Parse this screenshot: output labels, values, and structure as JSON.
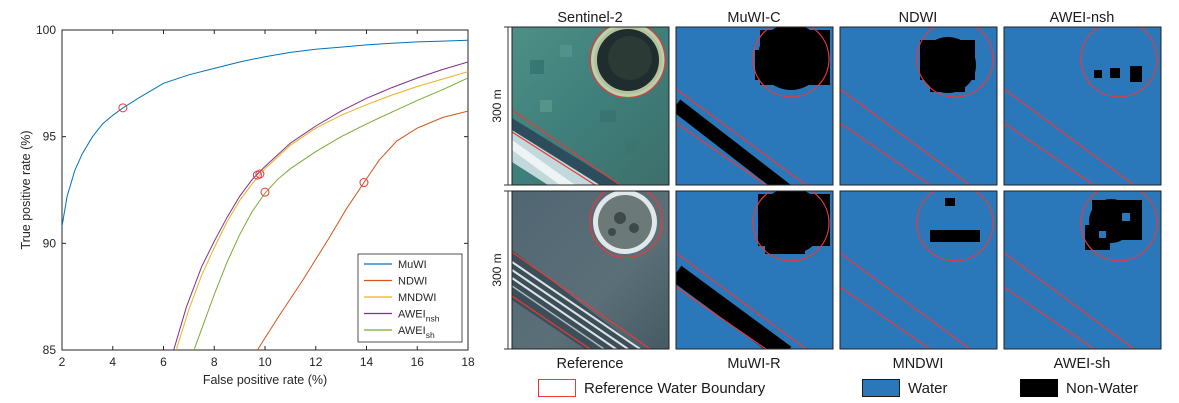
{
  "chart_data": {
    "type": "line",
    "title": "",
    "xlabel": "False positive rate (%)",
    "ylabel": "True positive rate (%)",
    "xlim": [
      2,
      18
    ],
    "ylim": [
      85,
      100
    ],
    "xticks": [
      2,
      4,
      6,
      8,
      10,
      12,
      14,
      16,
      18
    ],
    "yticks": [
      85,
      90,
      95,
      100
    ],
    "grid": false,
    "legend_position": "bottom-right",
    "series": [
      {
        "name": "MuWI",
        "legend_main": "MuWI",
        "legend_sub": "",
        "color": "#0072bd",
        "x": [
          2.0,
          2.2,
          2.5,
          2.8,
          3.2,
          3.6,
          4.0,
          4.4,
          5.0,
          6.0,
          7.0,
          8.0,
          9.0,
          10.0,
          11.0,
          12.0,
          13.0,
          14.0,
          15.0,
          16.0,
          17.0,
          18.0
        ],
        "y": [
          90.8,
          92.2,
          93.4,
          94.2,
          95.0,
          95.6,
          96.0,
          96.35,
          96.8,
          97.5,
          97.9,
          98.2,
          98.5,
          98.75,
          98.95,
          99.1,
          99.2,
          99.3,
          99.38,
          99.44,
          99.48,
          99.52
        ],
        "marker": [
          4.4,
          96.35
        ]
      },
      {
        "name": "NDWI",
        "legend_main": "NDWI",
        "legend_sub": "",
        "color": "#d95319",
        "x": [
          9.7,
          10.5,
          11.5,
          12.5,
          13.2,
          13.9,
          14.5,
          15.2,
          16.0,
          17.0,
          18.0
        ],
        "y": [
          85.0,
          86.5,
          88.3,
          90.2,
          91.6,
          92.85,
          93.9,
          94.8,
          95.4,
          95.9,
          96.2
        ],
        "marker": [
          13.9,
          92.85
        ]
      },
      {
        "name": "MNDWI",
        "legend_main": "MNDWI",
        "legend_sub": "",
        "color": "#edb120",
        "x": [
          6.5,
          7.0,
          7.5,
          8.0,
          8.5,
          9.0,
          9.5,
          10.0,
          11.0,
          12.0,
          13.0,
          14.0,
          15.0,
          16.0,
          17.0,
          18.0
        ],
        "y": [
          85.0,
          86.9,
          88.5,
          89.8,
          91.0,
          92.0,
          92.8,
          93.5,
          94.6,
          95.4,
          96.0,
          96.5,
          96.95,
          97.35,
          97.7,
          98.05
        ],
        "marker": [
          9.8,
          93.25
        ]
      },
      {
        "name": "AWEInsh",
        "legend_main": "AWEI",
        "legend_sub": "nsh",
        "color": "#7e2f8e",
        "x": [
          6.4,
          6.9,
          7.5,
          8.0,
          8.5,
          9.0,
          9.5,
          10.0,
          11.0,
          12.0,
          13.0,
          14.0,
          15.0,
          16.0,
          17.0,
          18.0
        ],
        "y": [
          85.0,
          87.0,
          88.9,
          90.1,
          91.2,
          92.2,
          93.0,
          93.6,
          94.7,
          95.5,
          96.2,
          96.8,
          97.3,
          97.75,
          98.15,
          98.5
        ],
        "marker": [
          9.7,
          93.2
        ]
      },
      {
        "name": "AWEIsh",
        "legend_main": "AWEI",
        "legend_sub": "sh",
        "color": "#77ac30",
        "x": [
          7.2,
          7.6,
          8.0,
          8.5,
          9.0,
          9.5,
          10.0,
          10.5,
          11.0,
          12.0,
          13.0,
          14.0,
          15.0,
          16.0,
          17.0,
          18.0
        ],
        "y": [
          85.0,
          86.3,
          87.6,
          89.1,
          90.4,
          91.5,
          92.35,
          93.0,
          93.5,
          94.3,
          95.0,
          95.6,
          96.15,
          96.7,
          97.2,
          97.75
        ],
        "marker": [
          10.0,
          92.4
        ]
      }
    ]
  },
  "map_titles_top": [
    "Sentinel-2",
    "MuWI-C",
    "NDWI",
    "AWEI-nsh"
  ],
  "map_titles_bottom": [
    "Reference",
    "MuWI-R",
    "MNDWI",
    "AWEI-sh"
  ],
  "scale_label": "300 m",
  "colors": {
    "water": "#2a78b9",
    "non_water": "#000000",
    "boundary": "#e8393b",
    "marker": "#e8393b"
  },
  "bottom_legend": {
    "reference_boundary": "Reference Water Boundary",
    "water": "Water",
    "non_water": "Non-Water"
  }
}
